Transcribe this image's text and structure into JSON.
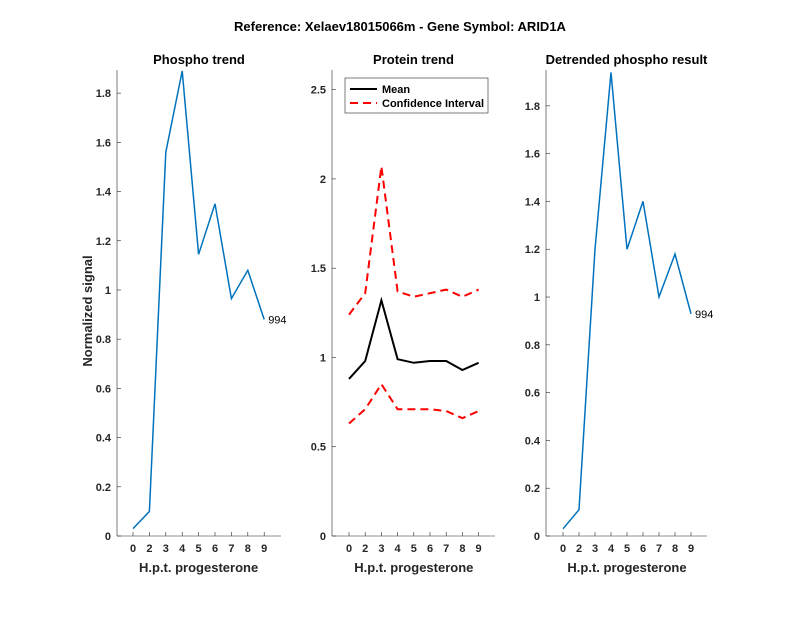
{
  "chart_data": {
    "suptitle": "Reference:  Xelaev18015066m - Gene Symbol:  ARID1A",
    "colors": {
      "phospho": "#0072bd",
      "mean": "#000000",
      "ci": "#ff0000",
      "axis": "#262626"
    },
    "panels": [
      {
        "type": "line",
        "title": "Phospho trend",
        "xlabel": "H.p.t. progesterone",
        "ylabel": "Normalized signal",
        "categories": [
          "0",
          "2",
          "3",
          "4",
          "5",
          "6",
          "7",
          "8",
          "9"
        ],
        "ylim": [
          0,
          1.894
        ],
        "yticks": [
          0,
          0.2,
          0.4,
          0.6,
          0.8,
          1,
          1.2,
          1.4,
          1.6,
          1.8
        ],
        "ytick_labels": [
          "0",
          "0.2",
          "0.4",
          "0.6",
          "0.8",
          "1",
          "1.2",
          "1.4",
          "1.6",
          "1.8"
        ],
        "series": [
          {
            "name": "Phospho",
            "color_key": "phospho",
            "dashed": false,
            "values": [
              0.03,
              0.1,
              1.56,
              1.89,
              1.145,
              1.35,
              0.965,
              1.08,
              0.88
            ]
          }
        ],
        "annotation": {
          "text": "994",
          "at_index": 8
        }
      },
      {
        "type": "line",
        "title": "Protein trend",
        "xlabel": "H.p.t. progesterone",
        "ylabel": "",
        "categories": [
          "0",
          "2",
          "3",
          "4",
          "5",
          "6",
          "7",
          "8",
          "9"
        ],
        "ylim": [
          0,
          2.61
        ],
        "yticks": [
          0,
          0.5,
          1,
          1.5,
          2,
          2.5
        ],
        "ytick_labels": [
          "0",
          "0.5",
          "1",
          "1.5",
          "2",
          "2.5"
        ],
        "series": [
          {
            "name": "Mean",
            "color_key": "mean",
            "dashed": false,
            "values": [
              0.88,
              0.98,
              1.32,
              0.99,
              0.97,
              0.98,
              0.98,
              0.93,
              0.97
            ]
          },
          {
            "name": "Confidence Interval",
            "color_key": "ci",
            "dashed": true,
            "values": [
              1.24,
              1.36,
              2.07,
              1.37,
              1.34,
              1.36,
              1.38,
              1.34,
              1.38
            ]
          },
          {
            "name": "Confidence Interval (lower)",
            "color_key": "ci",
            "dashed": true,
            "values": [
              0.63,
              0.71,
              0.85,
              0.71,
              0.71,
              0.71,
              0.7,
              0.66,
              0.7
            ]
          }
        ],
        "legend": {
          "position": "top",
          "entries": [
            {
              "label": "Mean",
              "color_key": "mean",
              "dashed": false
            },
            {
              "label": "Confidence Interval",
              "color_key": "ci",
              "dashed": true
            }
          ]
        }
      },
      {
        "type": "line",
        "title": "Detrended phospho result",
        "xlabel": "H.p.t. progesterone",
        "ylabel": "",
        "categories": [
          "0",
          "2",
          "3",
          "4",
          "5",
          "6",
          "7",
          "8",
          "9"
        ],
        "ylim": [
          0,
          1.95
        ],
        "yticks": [
          0,
          0.2,
          0.4,
          0.6,
          0.8,
          1,
          1.2,
          1.4,
          1.6,
          1.8
        ],
        "ytick_labels": [
          "0",
          "0.2",
          "0.4",
          "0.6",
          "0.8",
          "1",
          "1.2",
          "1.4",
          "1.6",
          "1.8"
        ],
        "series": [
          {
            "name": "Detrended phospho",
            "color_key": "phospho",
            "dashed": false,
            "values": [
              0.03,
              0.11,
              1.2,
              1.94,
              1.2,
              1.4,
              1.0,
              1.18,
              0.93
            ]
          }
        ],
        "annotation": {
          "text": "994",
          "at_index": 8
        }
      }
    ]
  }
}
